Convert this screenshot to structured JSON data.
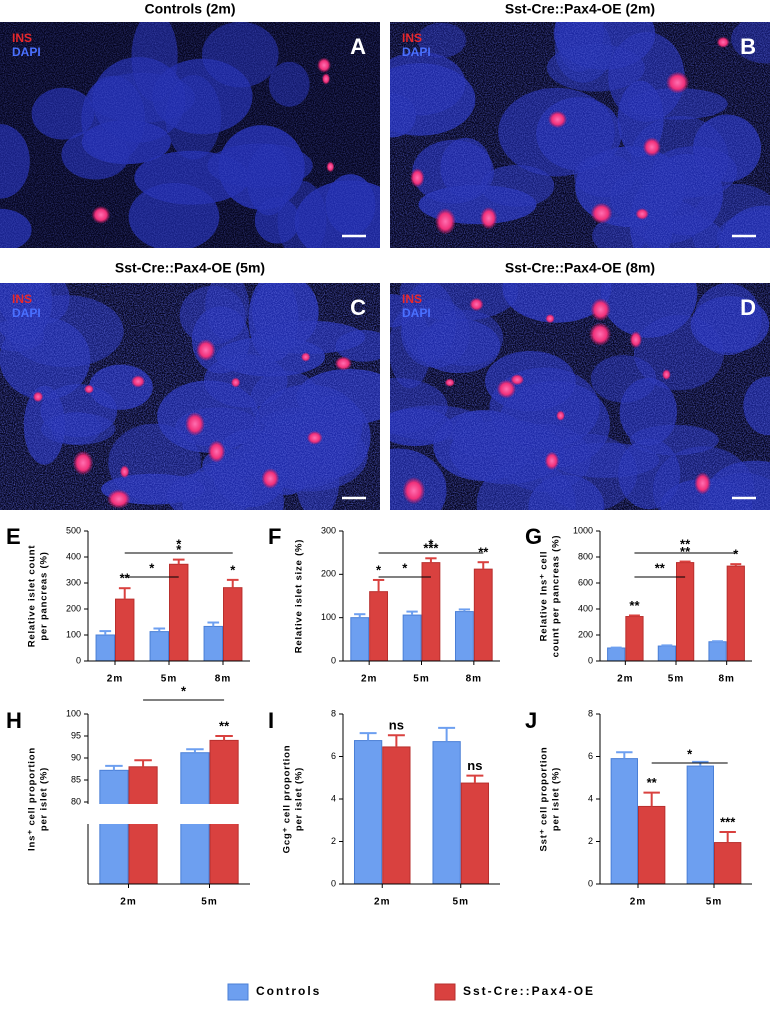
{
  "panels": [
    {
      "title": "Controls (2m)",
      "letter": "A",
      "stain": [
        "INS",
        "DAPI"
      ]
    },
    {
      "title": "Sst-Cre::Pax4-OE (2m)",
      "letter": "B",
      "stain": [
        "INS",
        "DAPI"
      ]
    },
    {
      "title": "Sst-Cre::Pax4-OE (5m)",
      "letter": "C",
      "stain": [
        "INS",
        "DAPI"
      ]
    },
    {
      "title": "Sst-Cre::Pax4-OE (8m)",
      "letter": "D",
      "stain": [
        "INS",
        "DAPI"
      ]
    }
  ],
  "legend": [
    {
      "name": "Controls",
      "color": "#6d9ff0"
    },
    {
      "name": "Sst-Cre::Pax4-OE",
      "color": "#d9413f"
    }
  ],
  "chart_data": [
    {
      "type": "bar",
      "letter": "E",
      "y_label": [
        "Relative islet count",
        "per pancreas (%)"
      ],
      "categories": [
        "2m",
        "5m",
        "8m"
      ],
      "ylim": [
        0,
        500
      ],
      "yticks": [
        0,
        100,
        200,
        300,
        400,
        500
      ],
      "series": [
        {
          "values": [
            100,
            113,
            133
          ],
          "errors": [
            15,
            12,
            15
          ]
        },
        {
          "values": [
            238,
            372,
            282
          ],
          "errors": [
            42,
            18,
            30
          ],
          "annotations": [
            "**",
            "*",
            "*"
          ]
        }
      ],
      "brackets": [
        "*",
        "*"
      ]
    },
    {
      "type": "bar",
      "letter": "F",
      "y_label": [
        "Relative islet size (%)"
      ],
      "categories": [
        "2m",
        "5m",
        "8m"
      ],
      "ylim": [
        0,
        300
      ],
      "yticks": [
        0,
        100,
        200,
        300
      ],
      "series": [
        {
          "values": [
            100,
            106,
            114
          ],
          "errors": [
            8,
            8,
            5
          ]
        },
        {
          "values": [
            160,
            227,
            212
          ],
          "errors": [
            27,
            10,
            16
          ],
          "annotations": [
            "*",
            "***",
            "**"
          ]
        }
      ],
      "brackets": [
        "*",
        "*"
      ]
    },
    {
      "type": "bar",
      "letter": "G",
      "y_label": [
        "Relative Ins⁺ cell",
        "count per pancreas (%)"
      ],
      "categories": [
        "2m",
        "5m",
        "8m"
      ],
      "ylim": [
        0,
        1000
      ],
      "yticks": [
        0,
        200,
        400,
        600,
        800,
        1000
      ],
      "series": [
        {
          "values": [
            100,
            115,
            148
          ],
          "errors": [
            3,
            5,
            4
          ]
        },
        {
          "values": [
            342,
            757,
            730
          ],
          "errors": [
            8,
            8,
            15
          ],
          "annotations": [
            "**",
            "**",
            "*"
          ]
        }
      ],
      "brackets": [
        "**",
        "**"
      ]
    },
    {
      "type": "bar",
      "letter": "H",
      "y_label": [
        "Ins⁺ cell proportion",
        "per islet (%)"
      ],
      "categories": [
        "2m",
        "5m"
      ],
      "ylim": [
        0,
        100
      ],
      "ybreak": 80,
      "yticks": [
        80,
        85,
        90,
        95,
        100
      ],
      "series": [
        {
          "values": [
            87.2,
            91.2
          ],
          "errors": [
            1,
            0.8
          ]
        },
        {
          "values": [
            88,
            94
          ],
          "errors": [
            1.5,
            1
          ],
          "annotations": [
            null,
            "**"
          ]
        }
      ],
      "brackets": [
        "*"
      ]
    },
    {
      "type": "bar",
      "letter": "I",
      "y_label": [
        "Gcg⁺ cell proportion",
        "per islet (%)"
      ],
      "categories": [
        "2m",
        "5m"
      ],
      "ylim": [
        0,
        8
      ],
      "yticks": [
        0,
        2,
        4,
        6,
        8
      ],
      "series": [
        {
          "values": [
            6.75,
            6.7
          ],
          "errors": [
            0.35,
            0.65
          ]
        },
        {
          "values": [
            6.45,
            4.75
          ],
          "errors": [
            0.55,
            0.35
          ],
          "annotations": [
            "ns",
            "ns"
          ]
        }
      ],
      "brackets": []
    },
    {
      "type": "bar",
      "letter": "J",
      "y_label": [
        "Sst⁺ cell proportion",
        "per islet (%)"
      ],
      "categories": [
        "2m",
        "5m"
      ],
      "ylim": [
        0,
        8
      ],
      "yticks": [
        0,
        2,
        4,
        6,
        8
      ],
      "series": [
        {
          "values": [
            5.9,
            5.55
          ],
          "errors": [
            0.3,
            0.2
          ]
        },
        {
          "values": [
            3.65,
            1.95
          ],
          "errors": [
            0.65,
            0.5
          ],
          "annotations": [
            "**",
            "***"
          ]
        }
      ],
      "brackets": [
        "*"
      ]
    }
  ]
}
